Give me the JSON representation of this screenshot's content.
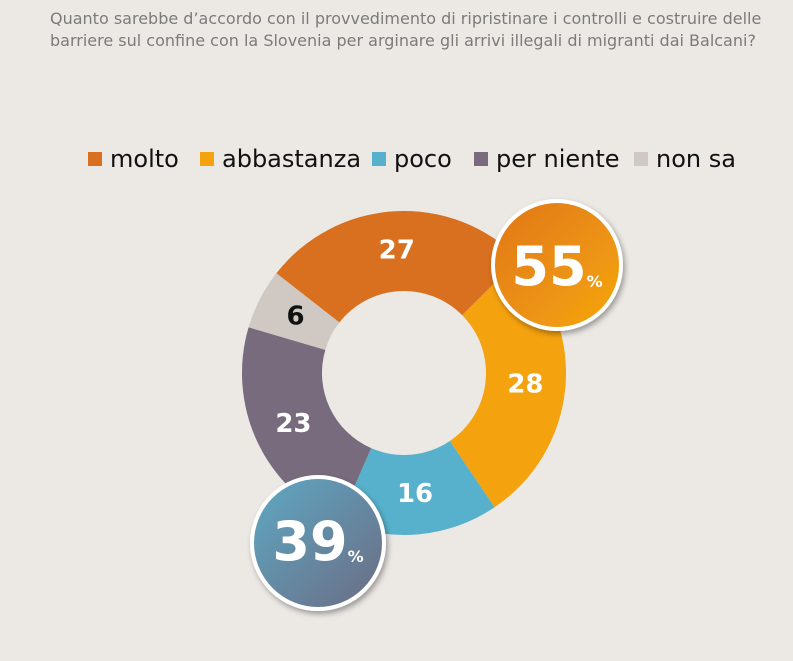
{
  "chart_data": {
    "type": "donut",
    "title": "Quanto sarebbe d’accordo con il provvedimento di ripristinare i controlli e costruire delle barriere sul confine con la Slovenia per arginare gli arrivi illegali di migranti dai Balcani?",
    "categories": [
      "molto",
      "abbastanza",
      "poco",
      "per niente",
      "non sa"
    ],
    "values": [
      27,
      28,
      16,
      23,
      6
    ],
    "colors": [
      "#d8701f",
      "#f5a20f",
      "#57b1cc",
      "#776b7d",
      "#cfc8c3"
    ],
    "legend": "top",
    "annotations": [
      {
        "number": "55",
        "unit": "%"
      },
      {
        "number": "39",
        "unit": "%"
      }
    ]
  }
}
